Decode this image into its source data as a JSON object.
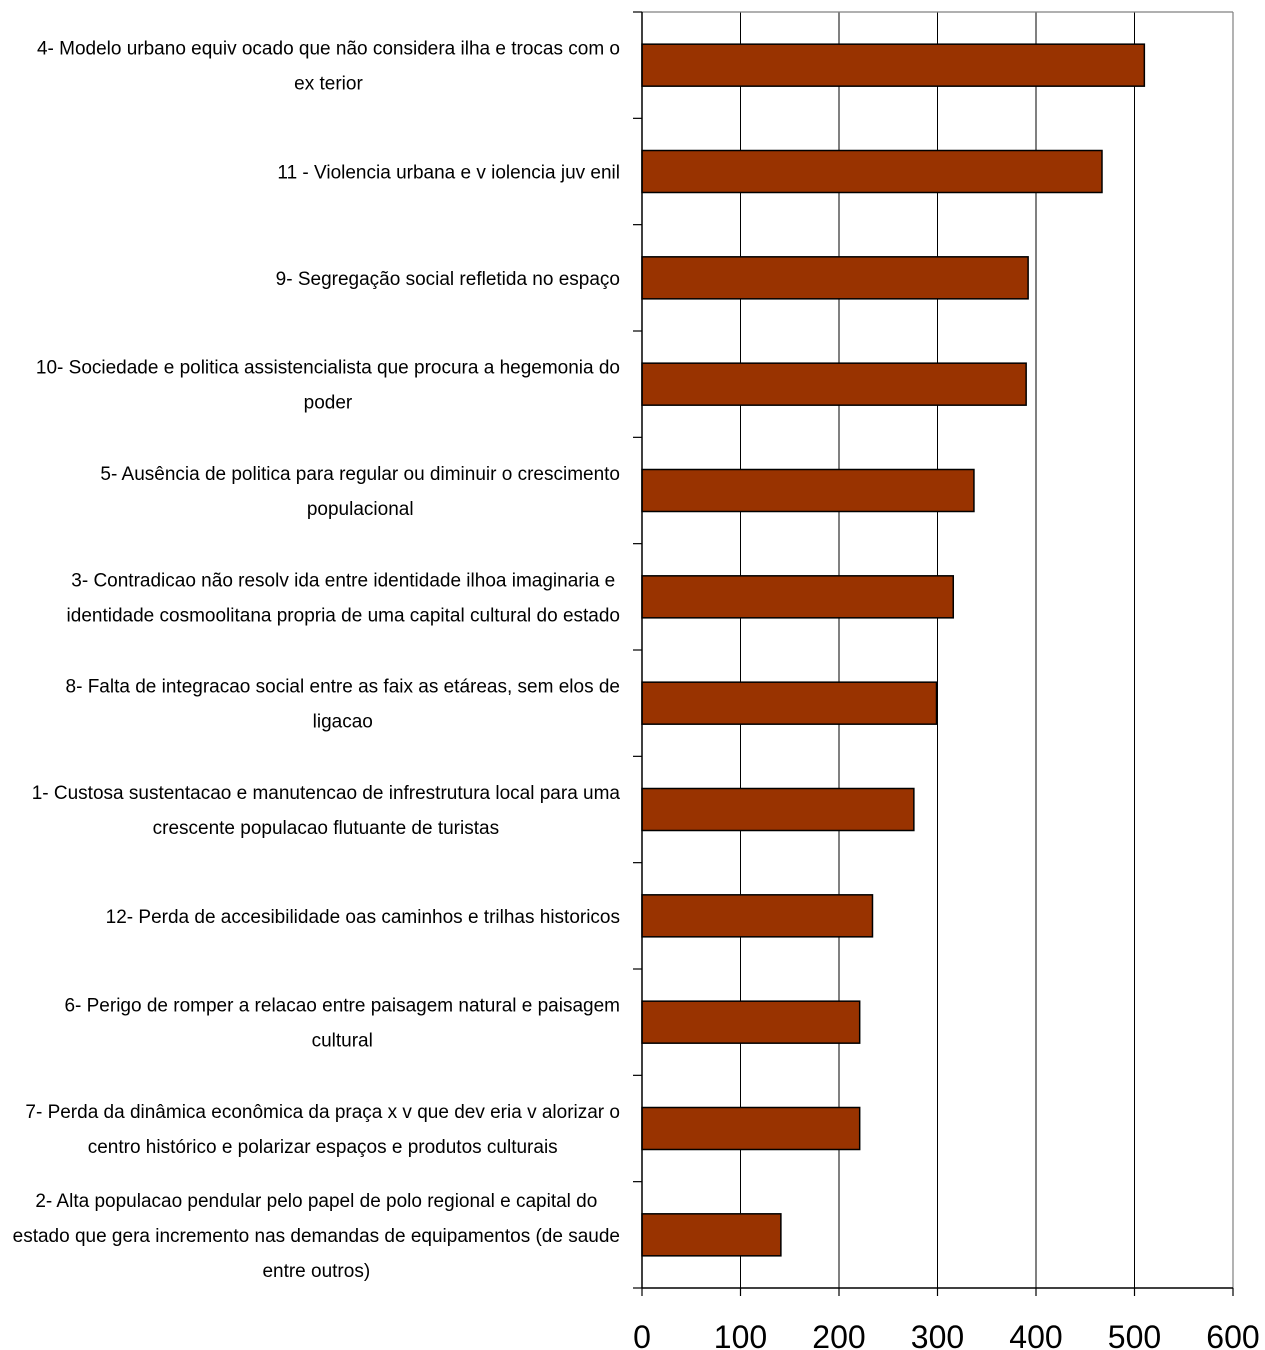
{
  "chart_data": {
    "type": "bar",
    "orientation": "horizontal",
    "title": "",
    "xlabel": "",
    "ylabel": "",
    "xlim": [
      0,
      600
    ],
    "xticks": [
      0,
      100,
      200,
      300,
      400,
      500,
      600
    ],
    "grid": "vertical",
    "bar_color": "#993300",
    "categories": [
      [
        "4- Modelo  urbano equiv ocado que não considera ilha e trocas com o",
        "ex terior"
      ],
      [
        "11 - Violencia urbana e v iolencia juv enil"
      ],
      [
        "9- Segregação social refletida no espaço"
      ],
      [
        "10- Sociedade e politica assistencialista que procura a hegemonia do",
        "poder"
      ],
      [
        "5- Ausência de politica para regular ou diminuir o crescimento",
        "populacional"
      ],
      [
        "3- Contradicao não resolv ida entre identidade ilhoa imaginaria e",
        "identidade cosmoolitana propria de uma capital cultural do estado"
      ],
      [
        "8- Falta de integracao social entre as faix as etáreas, sem elos de",
        "ligacao"
      ],
      [
        "1- Custosa sustentacao e manutencao de infrestrutura local para uma",
        "crescente populacao flutuante de turistas"
      ],
      [
        "12- Perda de accesibilidade oas caminhos e trilhas historicos"
      ],
      [
        "6- Perigo de romper a relacao entre paisagem natural e paisagem",
        "cultural"
      ],
      [
        "7- Perda da dinâmica econômica da praça x v  que dev eria v alorizar o",
        "centro histórico e polarizar espaços e produtos culturais"
      ],
      [
        "2- Alta populacao pendular pelo papel de polo regional e capital do",
        "estado que gera incremento nas demandas de equipamentos (de saude",
        "entre outros)"
      ]
    ],
    "values": [
      510,
      467,
      392,
      390,
      337,
      316,
      299,
      276,
      234,
      221,
      221,
      141
    ]
  }
}
